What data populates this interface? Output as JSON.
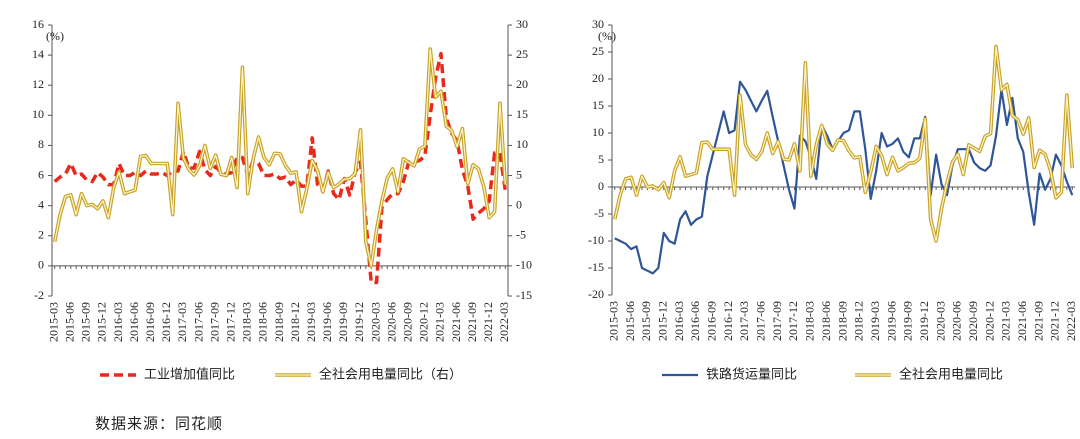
{
  "chart_data": [
    {
      "type": "line",
      "y_label": "(%)",
      "categories": [
        "2015-03",
        null,
        null,
        "2015-06",
        null,
        null,
        "2015-09",
        null,
        null,
        "2015-12",
        null,
        null,
        "2016-03",
        null,
        null,
        "2016-06",
        null,
        null,
        "2016-09",
        null,
        null,
        "2016-12",
        null,
        null,
        "2017-03",
        null,
        null,
        "2017-06",
        null,
        null,
        "2017-09",
        null,
        null,
        "2017-12",
        null,
        null,
        "2018-03",
        null,
        null,
        "2018-06",
        null,
        null,
        "2018-09",
        null,
        null,
        "2018-12",
        null,
        null,
        "2019-03",
        null,
        null,
        "2019-06",
        null,
        null,
        "2019-09",
        null,
        null,
        "2019-12",
        null,
        null,
        "2020-03",
        null,
        null,
        "2020-06",
        null,
        null,
        "2020-09",
        null,
        null,
        "2020-12",
        null,
        null,
        "2021-03",
        null,
        null,
        "2021-06",
        null,
        null,
        "2021-09",
        null,
        null,
        "2021-12",
        null,
        null,
        "2022-03"
      ],
      "ylim": [
        -2,
        16
      ],
      "yticks": [
        -2,
        0,
        2,
        4,
        6,
        8,
        10,
        12,
        14,
        16
      ],
      "y2lim": [
        -15,
        30
      ],
      "y2ticks": [
        -15,
        -10,
        -5,
        0,
        5,
        10,
        15,
        20,
        25,
        30
      ],
      "series": [
        {
          "name": "工业增加值同比",
          "color": "#e8291c",
          "style": "dashed",
          "values": [
            5.6,
            5.9,
            6.1,
            6.8,
            6.0,
            6.1,
            5.7,
            5.6,
            6.2,
            5.9,
            5.4,
            5.4,
            6.8,
            6.0,
            6.0,
            6.2,
            6.0,
            6.3,
            6.1,
            6.1,
            6.2,
            6.0,
            6.3,
            6.3,
            7.6,
            6.5,
            6.5,
            7.6,
            6.4,
            6.0,
            6.6,
            6.2,
            6.1,
            6.2,
            7.2,
            7.2,
            6.0,
            7.0,
            6.8,
            6.0,
            6.0,
            6.1,
            5.8,
            5.9,
            5.4,
            5.7,
            5.3,
            5.3,
            8.5,
            5.4,
            5.0,
            6.3,
            4.8,
            4.4,
            5.8,
            4.7,
            6.2,
            6.9,
            3.0,
            -1.1,
            -1.1,
            3.9,
            4.4,
            4.8,
            4.8,
            5.6,
            6.9,
            6.9,
            7.0,
            7.3,
            10.0,
            12.5,
            14.1,
            9.8,
            8.8,
            8.3,
            6.4,
            5.3,
            3.1,
            3.5,
            3.8,
            4.3,
            7.5,
            7.5,
            5.0
          ]
        },
        {
          "name": "全社会用电量同比（右）",
          "color": "#c8a32a",
          "style": "double",
          "axis": "y2",
          "values": [
            -6,
            -1.5,
            1.5,
            1.8,
            -1.5,
            2.0,
            0,
            0.2,
            -0.5,
            0.8,
            -2,
            3,
            5.6,
            2.0,
            2.3,
            2.6,
            8.2,
            8.3,
            7.0,
            7.0,
            7.0,
            7.0,
            -1.5,
            17,
            7.9,
            6.0,
            5.1,
            6.6,
            10.0,
            6.2,
            8.4,
            5.2,
            5.0,
            8.0,
            3,
            23,
            2.0,
            7.8,
            11.4,
            8.0,
            6.8,
            8.7,
            8.6,
            6.7,
            5.4,
            5.6,
            -1,
            2.8,
            7.5,
            5.8,
            2.3,
            5.5,
            3.0,
            3.6,
            4.4,
            4.5,
            5.3,
            12.6,
            -6,
            -10,
            -4,
            0.8,
            4.6,
            6.1,
            2.3,
            7.8,
            7.2,
            6.6,
            9.4,
            9.9,
            26,
            18,
            19,
            13.2,
            12.5,
            9.8,
            12.8,
            3.6,
            6.8,
            6.1,
            3.1,
            -2,
            -1,
            17,
            3.5
          ]
        }
      ]
    },
    {
      "type": "line",
      "y_label": "(%)",
      "categories": [
        "2015-03",
        null,
        null,
        "2015-06",
        null,
        null,
        "2015-09",
        null,
        null,
        "2015-12",
        null,
        null,
        "2016-03",
        null,
        null,
        "2016-06",
        null,
        null,
        "2016-09",
        null,
        null,
        "2016-12",
        null,
        null,
        "2017-03",
        null,
        null,
        "2017-06",
        null,
        null,
        "2017-09",
        null,
        null,
        "2017-12",
        null,
        null,
        "2018-03",
        null,
        null,
        "2018-06",
        null,
        null,
        "2018-09",
        null,
        null,
        "2018-12",
        null,
        null,
        "2019-03",
        null,
        null,
        "2019-06",
        null,
        null,
        "2019-09",
        null,
        null,
        "2019-12",
        null,
        null,
        "2020-03",
        null,
        null,
        "2020-06",
        null,
        null,
        "2020-09",
        null,
        null,
        "2020-12",
        null,
        null,
        "2021-03",
        null,
        null,
        "2021-06",
        null,
        null,
        "2021-09",
        null,
        null,
        "2021-12",
        null,
        null,
        "2022-03"
      ],
      "ylim": [
        -20,
        30
      ],
      "yticks": [
        -20,
        -15,
        -10,
        -5,
        0,
        5,
        10,
        15,
        20,
        25,
        30
      ],
      "series": [
        {
          "name": "铁路货运量同比",
          "color": "#2f5597",
          "style": "solid",
          "values": [
            -9.5,
            -10,
            -10.5,
            -11.5,
            -11,
            -15,
            -15.5,
            -16,
            -15,
            -8.5,
            -10,
            -10.5,
            -6,
            -4.5,
            -7,
            -6,
            -5.5,
            2,
            6,
            10,
            14,
            10,
            10.5,
            19.5,
            18,
            16,
            14,
            16,
            17.8,
            13,
            8.5,
            4,
            -0.5,
            -4,
            9.5,
            8.5,
            5.5,
            1.5,
            11.5,
            9.5,
            7,
            8.5,
            10,
            10.5,
            14,
            14,
            7,
            -2.2,
            3,
            10,
            7.5,
            8,
            9,
            6.5,
            5.5,
            9,
            9,
            13,
            -1.5,
            6,
            0.5,
            -1.5,
            4,
            7,
            7,
            7,
            4.5,
            3.5,
            3,
            4,
            9.5,
            18,
            11.5,
            16.5,
            9,
            6.5,
            -1,
            -7,
            2.5,
            -0.5,
            1.5,
            6,
            4,
            1,
            -1.5
          ]
        },
        {
          "name": "全社会用电量同比",
          "color": "#c8a32a",
          "style": "double",
          "values": [
            -6,
            -1.5,
            1.5,
            1.8,
            -1.5,
            2.0,
            0,
            0.2,
            -0.5,
            0.8,
            -2,
            3,
            5.6,
            2.0,
            2.3,
            2.6,
            8.2,
            8.3,
            7.0,
            7.0,
            7.0,
            7.0,
            -1.5,
            17,
            7.9,
            6.0,
            5.1,
            6.6,
            10.0,
            6.2,
            8.4,
            5.2,
            5.0,
            8.0,
            3,
            23,
            2.0,
            7.8,
            11.4,
            8.0,
            6.8,
            8.7,
            8.6,
            6.7,
            5.4,
            5.6,
            -1,
            2.8,
            7.5,
            5.8,
            2.3,
            5.5,
            3.0,
            3.6,
            4.4,
            4.5,
            5.3,
            12.6,
            -6,
            -10,
            -4,
            0.8,
            4.6,
            6.1,
            2.3,
            7.8,
            7.2,
            6.6,
            9.4,
            9.9,
            26,
            18,
            19,
            13.2,
            12.5,
            9.8,
            12.8,
            3.6,
            6.8,
            6.1,
            3.1,
            -2,
            -1,
            17,
            3.5
          ]
        }
      ]
    }
  ],
  "footer": {
    "source": "数据来源：同花顺"
  }
}
